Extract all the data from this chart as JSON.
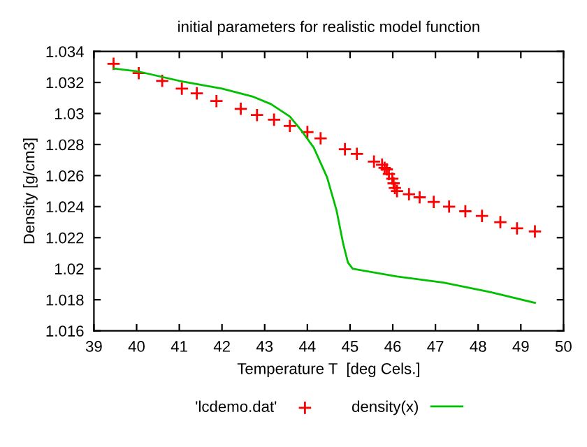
{
  "chart_data": {
    "type": "line",
    "title": "initial parameters for realistic model function",
    "xlabel": "Temperature T  [deg Cels.]",
    "ylabel": "Density [g/cm3]",
    "xlim": [
      39,
      50
    ],
    "xticks": [
      39,
      40,
      41,
      42,
      43,
      44,
      45,
      46,
      47,
      48,
      49,
      50
    ],
    "ylim": [
      1.016,
      1.034
    ],
    "yticks": [
      1.016,
      1.018,
      1.02,
      1.022,
      1.024,
      1.026,
      1.028,
      1.03,
      1.032,
      1.034
    ],
    "grid": false,
    "legend": "bottom",
    "series": [
      {
        "name": "'lcdemo.dat'",
        "type": "scatter",
        "marker": "cross",
        "color": "#ff0000",
        "x": [
          39.46,
          40.05,
          40.6,
          41.06,
          41.41,
          41.87,
          42.44,
          42.82,
          43.22,
          43.59,
          44.0,
          44.31,
          44.88,
          45.16,
          45.56,
          45.75,
          45.81,
          45.86,
          45.91,
          45.99,
          46.02,
          46.05,
          46.1,
          46.38,
          46.63,
          46.96,
          47.32,
          47.7,
          48.09,
          48.52,
          48.91,
          49.33
        ],
        "values": [
          1.0332,
          1.0326,
          1.0321,
          1.0316,
          1.0313,
          1.0308,
          1.0303,
          1.0299,
          1.0296,
          1.0292,
          1.0288,
          1.0284,
          1.0277,
          1.0274,
          1.0269,
          1.0267,
          1.0265,
          1.0264,
          1.0261,
          1.0258,
          1.0255,
          1.0252,
          1.025,
          1.0248,
          1.0246,
          1.0243,
          1.024,
          1.0237,
          1.0234,
          1.023,
          1.0226,
          1.0224
        ]
      },
      {
        "name": "density(x)",
        "line_style": "solid",
        "color": "#00c000",
        "x": [
          39.46,
          40.05,
          41.0,
          42.0,
          42.71,
          43.15,
          43.59,
          43.86,
          44.15,
          44.46,
          44.68,
          44.84,
          44.95,
          45.06,
          46.1,
          47.19,
          48.28,
          49.33
        ],
        "values": [
          1.0329,
          1.0327,
          1.0321,
          1.0316,
          1.0311,
          1.0306,
          1.0298,
          1.0289,
          1.0278,
          1.0259,
          1.0238,
          1.0216,
          1.0204,
          1.02,
          1.0195,
          1.0191,
          1.0185,
          1.0178
        ]
      }
    ]
  }
}
